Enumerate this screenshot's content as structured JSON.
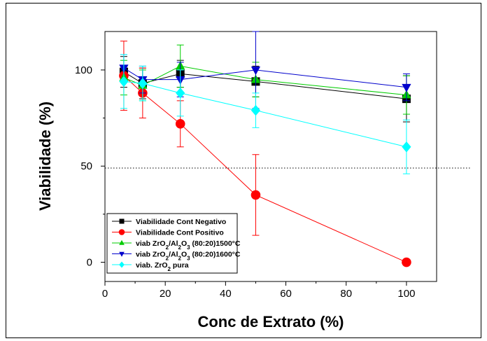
{
  "chart_data": {
    "type": "line",
    "xlabel": "Conc de Extrato (%)",
    "ylabel": "Viabilidade (%)",
    "xlim": [
      0,
      110
    ],
    "ylim": [
      -10,
      120
    ],
    "x_ticks": [
      0,
      20,
      40,
      60,
      80,
      100
    ],
    "y_ticks": [
      0,
      50,
      100
    ],
    "reference_line": {
      "y": 49,
      "style": "dotted"
    },
    "legend_position": "bottom-left",
    "series": [
      {
        "name": "Viabilidade Cont Negativo",
        "label_html": "Viabilidade Cont Negativo",
        "color": "#000000",
        "marker": "square",
        "x": [
          6.25,
          12.5,
          25,
          50,
          100
        ],
        "y": [
          99,
          93,
          98,
          94,
          85
        ],
        "err": [
          8,
          8,
          7,
          8,
          12
        ]
      },
      {
        "name": "Viabilidade Cont Positivo",
        "label_html": "Viabilidade Cont Positivo",
        "color": "#ff0000",
        "marker": "circle",
        "x": [
          6.25,
          12.5,
          25,
          50,
          100
        ],
        "y": [
          97,
          88,
          72,
          35,
          0
        ],
        "err": [
          18,
          13,
          12,
          21,
          0
        ]
      },
      {
        "name": "viab ZrO2/Al2O3 (80:20)1500°C",
        "label_html": "viab ZrO<tspan baseline-shift='sub' font-size='8'>2</tspan>/Al<tspan baseline-shift='sub' font-size='8'>2</tspan>O<tspan baseline-shift='sub' font-size='8'>3</tspan> (80:20)1500°C",
        "color": "#00cc00",
        "marker": "triangle-up",
        "x": [
          6.25,
          12.5,
          25,
          50,
          100
        ],
        "y": [
          96,
          92,
          102,
          95,
          87
        ],
        "err": [
          9,
          8,
          11,
          9,
          10
        ]
      },
      {
        "name": "viab ZrO2/Al2O3 (80:20)1600°C",
        "label_html": "viab ZrO<tspan baseline-shift='sub' font-size='8'>2</tspan>/Al<tspan baseline-shift='sub' font-size='8'>2</tspan>O<tspan baseline-shift='sub' font-size='8'>3</tspan> (80:20)1600°C",
        "color": "#0000cc",
        "marker": "triangle-down",
        "x": [
          6.25,
          12.5,
          25,
          50,
          100
        ],
        "y": [
          101,
          95,
          95,
          100,
          91
        ],
        "err": [
          7,
          7,
          9,
          20,
          7
        ]
      },
      {
        "name": "viab. ZrO2 pura",
        "label_html": "viab. ZrO<tspan baseline-shift='sub' font-size='8'>2</tspan> pura",
        "color": "#00ffff",
        "marker": "diamond",
        "x": [
          6.25,
          12.5,
          25,
          50,
          100
        ],
        "y": [
          94,
          93,
          88,
          79,
          60
        ],
        "err": [
          14,
          9,
          12,
          9,
          14
        ]
      }
    ]
  }
}
